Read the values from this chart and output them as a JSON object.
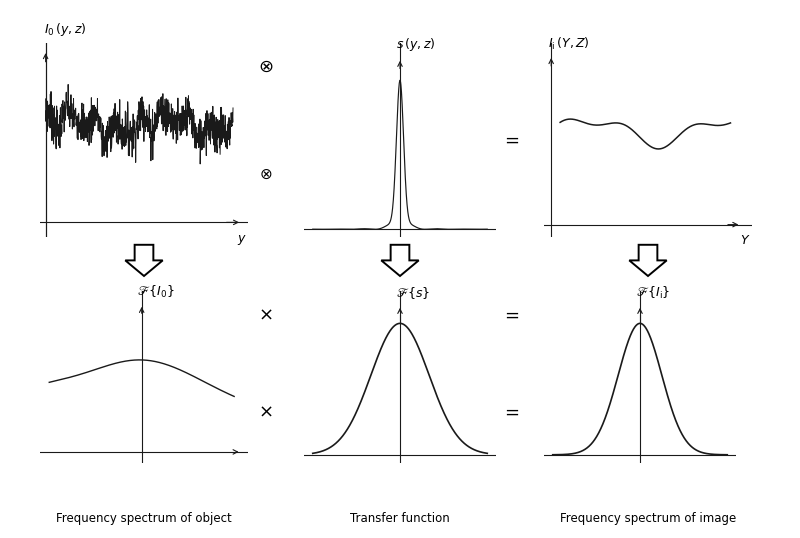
{
  "bg_color": "#ffffff",
  "line_color": "#1a1a1a",
  "caption_left": "Frequency spectrum of object",
  "caption_mid": "Transfer function",
  "caption_right": "Frequency spectrum of image"
}
